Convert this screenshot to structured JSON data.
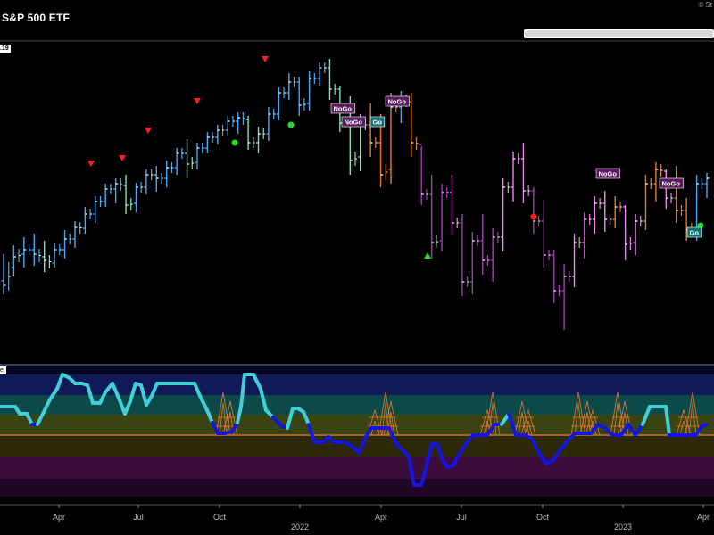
{
  "header": {
    "title": "S&P 500 ETF",
    "copyright": "© St",
    "price_badge": ".19",
    "osc_label": "e"
  },
  "chart_data": {
    "type": "bar",
    "title": "S&P 500 ETF",
    "x_ticks": [
      "Apr",
      "Jul",
      "Oct",
      "2022",
      "Apr",
      "Jul",
      "Oct",
      "2023",
      "Apr"
    ],
    "price_series": [
      {
        "t": 0,
        "o": 315,
        "h": 285,
        "l": 330,
        "c": 320,
        "color": "#4aa8f0"
      },
      {
        "t": 1,
        "o": 300,
        "h": 275,
        "l": 310,
        "c": 288,
        "color": "#4aa8f0"
      },
      {
        "t": 2,
        "o": 285,
        "h": 266,
        "l": 300,
        "c": 280,
        "color": "#4aa8f0"
      },
      {
        "t": 3,
        "o": 280,
        "h": 262,
        "l": 298,
        "c": 285,
        "color": "#4aa8f0"
      },
      {
        "t": 4,
        "o": 288,
        "h": 270,
        "l": 305,
        "c": 292,
        "color": "#7fe0c0"
      },
      {
        "t": 5,
        "o": 295,
        "h": 272,
        "l": 300,
        "c": 280,
        "color": "#4aa8f0"
      },
      {
        "t": 6,
        "o": 280,
        "h": 258,
        "l": 290,
        "c": 268,
        "color": "#4aa8f0"
      },
      {
        "t": 7,
        "o": 268,
        "h": 248,
        "l": 278,
        "c": 255,
        "color": "#4aa8f0"
      },
      {
        "t": 8,
        "o": 256,
        "h": 232,
        "l": 262,
        "c": 240,
        "color": "#4aa8f0"
      },
      {
        "t": 9,
        "o": 240,
        "h": 220,
        "l": 250,
        "c": 226,
        "color": "#4aa8f0"
      },
      {
        "t": 10,
        "o": 226,
        "h": 206,
        "l": 232,
        "c": 212,
        "color": "#4aa8f0"
      },
      {
        "t": 11,
        "o": 212,
        "h": 200,
        "l": 228,
        "c": 206,
        "color": "#4aa8f0"
      },
      {
        "t": 12,
        "o": 208,
        "h": 196,
        "l": 240,
        "c": 230,
        "color": "#7fe0c0"
      },
      {
        "t": 13,
        "o": 228,
        "h": 205,
        "l": 238,
        "c": 210,
        "color": "#4aa8f0"
      },
      {
        "t": 14,
        "o": 210,
        "h": 190,
        "l": 218,
        "c": 196,
        "color": "#4aa8f0"
      },
      {
        "t": 15,
        "o": 196,
        "h": 186,
        "l": 215,
        "c": 200,
        "color": "#4aa8f0"
      },
      {
        "t": 16,
        "o": 200,
        "h": 180,
        "l": 210,
        "c": 188,
        "color": "#4aa8f0"
      },
      {
        "t": 17,
        "o": 188,
        "h": 166,
        "l": 196,
        "c": 172,
        "color": "#4aa8f0"
      },
      {
        "t": 18,
        "o": 172,
        "h": 156,
        "l": 200,
        "c": 184,
        "color": "#7fe0c0"
      },
      {
        "t": 19,
        "o": 182,
        "h": 160,
        "l": 190,
        "c": 166,
        "color": "#4aa8f0"
      },
      {
        "t": 20,
        "o": 166,
        "h": 148,
        "l": 172,
        "c": 154,
        "color": "#4aa8f0"
      },
      {
        "t": 21,
        "o": 154,
        "h": 140,
        "l": 162,
        "c": 146,
        "color": "#4aa8f0"
      },
      {
        "t": 22,
        "o": 146,
        "h": 130,
        "l": 152,
        "c": 136,
        "color": "#4aa8f0"
      },
      {
        "t": 23,
        "o": 136,
        "h": 126,
        "l": 150,
        "c": 132,
        "color": "#4aa8f0"
      },
      {
        "t": 24,
        "o": 134,
        "h": 130,
        "l": 168,
        "c": 160,
        "color": "#7fe0c0"
      },
      {
        "t": 25,
        "o": 160,
        "h": 142,
        "l": 172,
        "c": 150,
        "color": "#7fe0c0"
      },
      {
        "t": 26,
        "o": 150,
        "h": 120,
        "l": 158,
        "c": 128,
        "color": "#4aa8f0"
      },
      {
        "t": 27,
        "o": 128,
        "h": 98,
        "l": 135,
        "c": 104,
        "color": "#4aa8f0"
      },
      {
        "t": 28,
        "o": 104,
        "h": 82,
        "l": 112,
        "c": 92,
        "color": "#4aa8f0"
      },
      {
        "t": 29,
        "o": 92,
        "h": 86,
        "l": 130,
        "c": 118,
        "color": "#4aa8f0"
      },
      {
        "t": 30,
        "o": 116,
        "h": 80,
        "l": 124,
        "c": 88,
        "color": "#4aa8f0"
      },
      {
        "t": 31,
        "o": 88,
        "h": 70,
        "l": 96,
        "c": 76,
        "color": "#4aa8f0"
      },
      {
        "t": 32,
        "o": 76,
        "h": 66,
        "l": 112,
        "c": 100,
        "color": "#7fe0c0"
      },
      {
        "t": 33,
        "o": 100,
        "h": 96,
        "l": 148,
        "c": 138,
        "color": "#7fe0c0"
      },
      {
        "t": 34,
        "o": 136,
        "h": 108,
        "l": 196,
        "c": 180,
        "color": "#7fe0c0"
      },
      {
        "t": 35,
        "o": 176,
        "h": 128,
        "l": 192,
        "c": 140,
        "color": "#7fe0c0"
      },
      {
        "t": 36,
        "o": 140,
        "h": 116,
        "l": 176,
        "c": 160,
        "color": "#e07a30"
      },
      {
        "t": 37,
        "o": 160,
        "h": 128,
        "l": 210,
        "c": 196,
        "color": "#e07a30"
      },
      {
        "t": 38,
        "o": 190,
        "h": 104,
        "l": 206,
        "c": 120,
        "color": "#e07a30"
      },
      {
        "t": 39,
        "o": 120,
        "h": 102,
        "l": 138,
        "c": 112,
        "color": "#4aa8f0"
      },
      {
        "t": 40,
        "o": 114,
        "h": 104,
        "l": 176,
        "c": 160,
        "color": "#e07a30"
      },
      {
        "t": 41,
        "o": 162,
        "h": 164,
        "l": 230,
        "c": 218,
        "color": "#a040b0"
      },
      {
        "t": 42,
        "o": 218,
        "h": 196,
        "l": 290,
        "c": 272,
        "color": "#a040b0"
      },
      {
        "t": 43,
        "o": 270,
        "h": 206,
        "l": 282,
        "c": 216,
        "color": "#a040b0"
      },
      {
        "t": 44,
        "o": 216,
        "h": 196,
        "l": 264,
        "c": 250,
        "color": "#e888e8"
      },
      {
        "t": 45,
        "o": 250,
        "h": 240,
        "l": 332,
        "c": 316,
        "color": "#a040b0"
      },
      {
        "t": 46,
        "o": 316,
        "h": 260,
        "l": 330,
        "c": 270,
        "color": "#a040b0"
      },
      {
        "t": 47,
        "o": 270,
        "h": 240,
        "l": 308,
        "c": 292,
        "color": "#a040b0"
      },
      {
        "t": 48,
        "o": 292,
        "h": 256,
        "l": 316,
        "c": 266,
        "color": "#a040b0"
      },
      {
        "t": 49,
        "o": 266,
        "h": 200,
        "l": 282,
        "c": 210,
        "color": "#e888e8"
      },
      {
        "t": 50,
        "o": 210,
        "h": 170,
        "l": 226,
        "c": 178,
        "color": "#e888e8"
      },
      {
        "t": 51,
        "o": 178,
        "h": 160,
        "l": 228,
        "c": 214,
        "color": "#e888e8"
      },
      {
        "t": 52,
        "o": 214,
        "h": 210,
        "l": 262,
        "c": 248,
        "color": "#a040b0"
      },
      {
        "t": 53,
        "o": 248,
        "h": 224,
        "l": 300,
        "c": 286,
        "color": "#a040b0"
      },
      {
        "t": 54,
        "o": 286,
        "h": 280,
        "l": 340,
        "c": 326,
        "color": "#a040b0"
      },
      {
        "t": 55,
        "o": 326,
        "h": 296,
        "l": 370,
        "c": 310,
        "color": "#a040b0"
      },
      {
        "t": 56,
        "o": 310,
        "h": 262,
        "l": 322,
        "c": 272,
        "color": "#e888e8"
      },
      {
        "t": 57,
        "o": 272,
        "h": 238,
        "l": 290,
        "c": 246,
        "color": "#e888e8"
      },
      {
        "t": 58,
        "o": 246,
        "h": 220,
        "l": 262,
        "c": 228,
        "color": "#e888e8"
      },
      {
        "t": 59,
        "o": 228,
        "h": 214,
        "l": 260,
        "c": 246,
        "color": "#e888e8"
      },
      {
        "t": 60,
        "o": 246,
        "h": 220,
        "l": 256,
        "c": 232,
        "color": "#e07a30"
      },
      {
        "t": 61,
        "o": 232,
        "h": 230,
        "l": 292,
        "c": 274,
        "color": "#e888e8"
      },
      {
        "t": 62,
        "o": 272,
        "h": 240,
        "l": 286,
        "c": 248,
        "color": "#e888e8"
      },
      {
        "t": 63,
        "o": 248,
        "h": 196,
        "l": 258,
        "c": 206,
        "color": "#e07a30"
      },
      {
        "t": 64,
        "o": 206,
        "h": 182,
        "l": 226,
        "c": 190,
        "color": "#e07a30"
      },
      {
        "t": 65,
        "o": 192,
        "h": 190,
        "l": 234,
        "c": 222,
        "color": "#e888e8"
      },
      {
        "t": 66,
        "o": 222,
        "h": 186,
        "l": 250,
        "c": 236,
        "color": "#e07a30"
      },
      {
        "t": 67,
        "o": 236,
        "h": 222,
        "l": 270,
        "c": 258,
        "color": "#e07a30"
      },
      {
        "t": 68,
        "o": 256,
        "h": 196,
        "l": 270,
        "c": 206,
        "color": "#4aa8f0"
      },
      {
        "t": 69,
        "o": 206,
        "h": 194,
        "l": 222,
        "c": 200,
        "color": "#4aa8f0"
      }
    ],
    "oscillator_series": [
      {
        "x": 0,
        "y": 456
      },
      {
        "x": 10,
        "y": 456
      },
      {
        "x": 17,
        "y": 456
      },
      {
        "x": 22,
        "y": 464
      },
      {
        "x": 30,
        "y": 464
      },
      {
        "x": 36,
        "y": 476
      },
      {
        "x": 42,
        "y": 476
      },
      {
        "x": 48,
        "y": 464
      },
      {
        "x": 56,
        "y": 448
      },
      {
        "x": 64,
        "y": 436
      },
      {
        "x": 70,
        "y": 420
      },
      {
        "x": 78,
        "y": 424
      },
      {
        "x": 84,
        "y": 430
      },
      {
        "x": 92,
        "y": 430
      },
      {
        "x": 98,
        "y": 432
      },
      {
        "x": 104,
        "y": 452
      },
      {
        "x": 112,
        "y": 452
      },
      {
        "x": 118,
        "y": 440
      },
      {
        "x": 126,
        "y": 430
      },
      {
        "x": 132,
        "y": 444
      },
      {
        "x": 140,
        "y": 464
      },
      {
        "x": 146,
        "y": 450
      },
      {
        "x": 152,
        "y": 430
      },
      {
        "x": 158,
        "y": 432
      },
      {
        "x": 164,
        "y": 454
      },
      {
        "x": 170,
        "y": 444
      },
      {
        "x": 176,
        "y": 430
      },
      {
        "x": 190,
        "y": 430
      },
      {
        "x": 204,
        "y": 430
      },
      {
        "x": 218,
        "y": 430
      },
      {
        "x": 224,
        "y": 444
      },
      {
        "x": 232,
        "y": 460
      },
      {
        "x": 238,
        "y": 474
      },
      {
        "x": 244,
        "y": 486
      },
      {
        "x": 252,
        "y": 486
      },
      {
        "x": 260,
        "y": 484
      },
      {
        "x": 266,
        "y": 474
      },
      {
        "x": 270,
        "y": 456
      },
      {
        "x": 274,
        "y": 420
      },
      {
        "x": 284,
        "y": 420
      },
      {
        "x": 292,
        "y": 436
      },
      {
        "x": 298,
        "y": 460
      },
      {
        "x": 306,
        "y": 468
      },
      {
        "x": 316,
        "y": 478
      },
      {
        "x": 322,
        "y": 480
      },
      {
        "x": 328,
        "y": 458
      },
      {
        "x": 334,
        "y": 458
      },
      {
        "x": 340,
        "y": 462
      },
      {
        "x": 346,
        "y": 476
      },
      {
        "x": 352,
        "y": 496
      },
      {
        "x": 362,
        "y": 496
      },
      {
        "x": 368,
        "y": 490
      },
      {
        "x": 374,
        "y": 496
      },
      {
        "x": 386,
        "y": 496
      },
      {
        "x": 394,
        "y": 500
      },
      {
        "x": 402,
        "y": 508
      },
      {
        "x": 410,
        "y": 490
      },
      {
        "x": 416,
        "y": 480
      },
      {
        "x": 428,
        "y": 480
      },
      {
        "x": 436,
        "y": 480
      },
      {
        "x": 444,
        "y": 498
      },
      {
        "x": 452,
        "y": 506
      },
      {
        "x": 458,
        "y": 512
      },
      {
        "x": 464,
        "y": 544
      },
      {
        "x": 472,
        "y": 544
      },
      {
        "x": 478,
        "y": 522
      },
      {
        "x": 484,
        "y": 498
      },
      {
        "x": 490,
        "y": 498
      },
      {
        "x": 496,
        "y": 516
      },
      {
        "x": 502,
        "y": 524
      },
      {
        "x": 508,
        "y": 522
      },
      {
        "x": 514,
        "y": 510
      },
      {
        "x": 522,
        "y": 498
      },
      {
        "x": 530,
        "y": 488
      },
      {
        "x": 538,
        "y": 488
      },
      {
        "x": 546,
        "y": 488
      },
      {
        "x": 554,
        "y": 476
      },
      {
        "x": 562,
        "y": 476
      },
      {
        "x": 570,
        "y": 464
      },
      {
        "x": 578,
        "y": 488
      },
      {
        "x": 588,
        "y": 488
      },
      {
        "x": 596,
        "y": 492
      },
      {
        "x": 604,
        "y": 508
      },
      {
        "x": 612,
        "y": 520
      },
      {
        "x": 620,
        "y": 516
      },
      {
        "x": 628,
        "y": 504
      },
      {
        "x": 636,
        "y": 494
      },
      {
        "x": 644,
        "y": 486
      },
      {
        "x": 654,
        "y": 486
      },
      {
        "x": 662,
        "y": 486
      },
      {
        "x": 670,
        "y": 476
      },
      {
        "x": 678,
        "y": 480
      },
      {
        "x": 686,
        "y": 488
      },
      {
        "x": 696,
        "y": 488
      },
      {
        "x": 704,
        "y": 476
      },
      {
        "x": 712,
        "y": 488
      },
      {
        "x": 720,
        "y": 476
      },
      {
        "x": 728,
        "y": 456
      },
      {
        "x": 738,
        "y": 456
      },
      {
        "x": 746,
        "y": 456
      },
      {
        "x": 750,
        "y": 488
      },
      {
        "x": 760,
        "y": 488
      },
      {
        "x": 772,
        "y": 488
      },
      {
        "x": 780,
        "y": 488
      },
      {
        "x": 786,
        "y": 478
      },
      {
        "x": 792,
        "y": 476
      }
    ],
    "go_nogo_labels": [
      "NoGo",
      "NoGo",
      "Go",
      "NoGo",
      "NoGo",
      "NoGo",
      "Go"
    ],
    "colors": {
      "strong_go": "#4aa8f0",
      "weak_go": "#7fe0c0",
      "nogo": "#a040b0",
      "weak_nogo": "#e888e8",
      "neutral": "#e07a30",
      "osc_up": "#3fd0d8",
      "osc_down": "#1515e0",
      "signal_red": "#ff1e1e",
      "signal_green": "#22dd22"
    }
  }
}
